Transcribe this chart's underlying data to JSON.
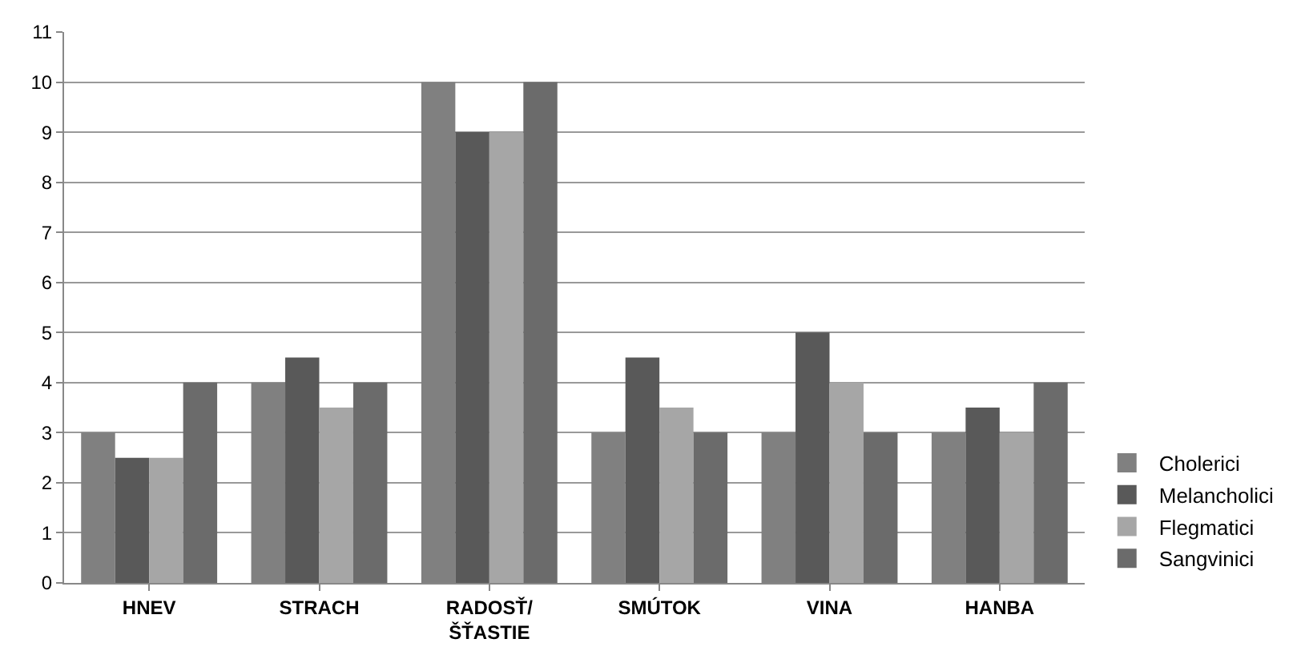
{
  "chart_data": {
    "type": "bar",
    "categories": [
      "HNEV",
      "STRACH",
      "RADOSŤ/\nŠŤASTIE",
      "SMÚTOK",
      "VINA",
      "HANBA"
    ],
    "series": [
      {
        "name": "Cholerici",
        "color": "#808080",
        "values": [
          3,
          4,
          10,
          3,
          3,
          3
        ]
      },
      {
        "name": "Melancholici",
        "color": "#595959",
        "values": [
          2.5,
          4.5,
          9,
          4.5,
          5,
          3.5
        ]
      },
      {
        "name": "Flegmatici",
        "color": "#a6a6a6",
        "values": [
          2.5,
          3.5,
          9,
          3.5,
          4,
          3
        ]
      },
      {
        "name": "Sangvinici",
        "color": "#6b6b6b",
        "values": [
          4,
          4,
          10,
          3,
          3,
          4
        ]
      }
    ],
    "ylim": [
      0,
      11
    ],
    "yticks": [
      0,
      1,
      2,
      3,
      4,
      5,
      6,
      7,
      8,
      9,
      10,
      11
    ],
    "grid": "y",
    "legend": "bottom right"
  }
}
